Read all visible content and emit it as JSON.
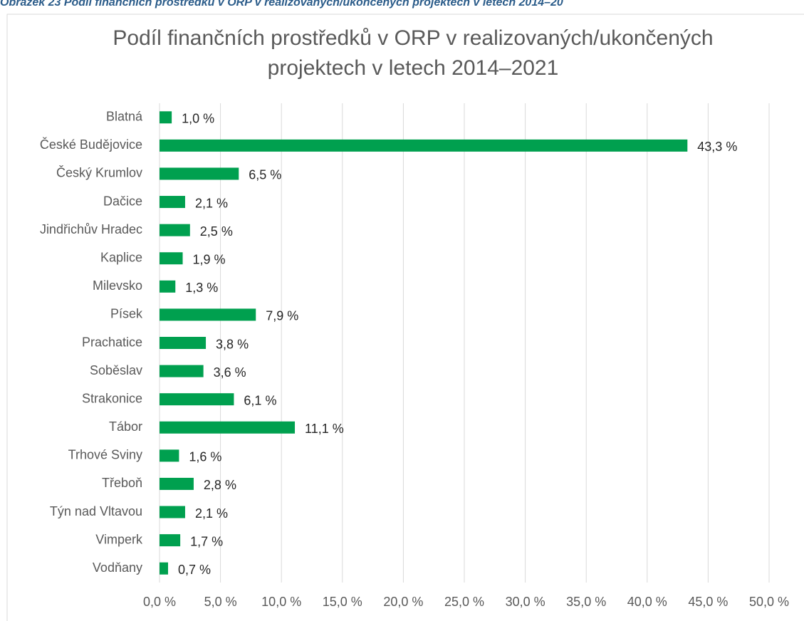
{
  "caption": "Obrázek 23 Podíl finančních prostředků v ORP v realizovaných/ukončených projektech v letech 2014–20",
  "chart_data": {
    "type": "bar",
    "orientation": "horizontal",
    "title": [
      "Podíl finančních prostředků v ORP v realizovaných/ukončených",
      "projektech v letech 2014–2021"
    ],
    "categories": [
      "Blatná",
      "České Budějovice",
      "Český Krumlov",
      "Dačice",
      "Jindřichův Hradec",
      "Kaplice",
      "Milevsko",
      "Písek",
      "Prachatice",
      "Soběslav",
      "Strakonice",
      "Tábor",
      "Trhové Sviny",
      "Třeboň",
      "Týn nad Vltavou",
      "Vimperk",
      "Vodňany"
    ],
    "values": [
      1.0,
      43.3,
      6.5,
      2.1,
      2.5,
      1.9,
      1.3,
      7.9,
      3.8,
      3.6,
      6.1,
      11.1,
      1.6,
      2.8,
      2.1,
      1.7,
      0.7
    ],
    "value_labels": [
      "1,0 %",
      "43,3 %",
      "6,5 %",
      "2,1 %",
      "2,5 %",
      "1,9 %",
      "1,3 %",
      "7,9 %",
      "3,8 %",
      "3,6 %",
      "6,1 %",
      "11,1 %",
      "1,6 %",
      "2,8 %",
      "2,1 %",
      "1,7 %",
      "0,7 %"
    ],
    "color": "#00a04f",
    "xlim": [
      0,
      50
    ],
    "xticks": [
      {
        "value": 0,
        "label": "0,0 %"
      },
      {
        "value": 5,
        "label": "5,0 %"
      },
      {
        "value": 10,
        "label": "10,0 %"
      },
      {
        "value": 15,
        "label": "15,0 %"
      },
      {
        "value": 20,
        "label": "20,0 %"
      },
      {
        "value": 25,
        "label": "25,0 %"
      },
      {
        "value": 30,
        "label": "30,0 %"
      },
      {
        "value": 35,
        "label": "35,0 %"
      },
      {
        "value": 40,
        "label": "40,0 %"
      },
      {
        "value": 45,
        "label": "45,0 %"
      },
      {
        "value": 50,
        "label": "50,0 %"
      }
    ],
    "grid": true
  }
}
